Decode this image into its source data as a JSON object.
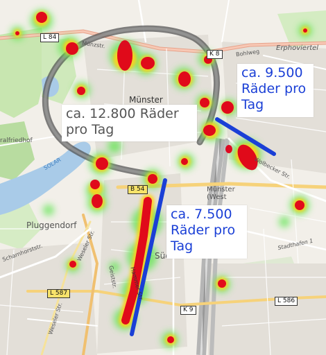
{
  "annotations": {
    "center_label": "ca. 12.800 Räder\npro Tag",
    "east_label": "ca. 9.500\nRäder pro\nTag",
    "south_label": "ca. 7.500\nRäder pro\nTag"
  },
  "annotation_colors": {
    "center_text": "#555555",
    "east_text": "#1a3fd6",
    "south_text": "#1a3fd6",
    "marker_line": "#1a3fd6"
  },
  "road_shields": {
    "l84": "L 84",
    "k8": "K 8",
    "b54": "B 54",
    "l587": "L 587",
    "k9": "K 9",
    "l586": "L 586"
  },
  "places": {
    "muenster": "Münster",
    "pluggendorf": "Pluggendorf",
    "erphoviertel": "Erphoviertel",
    "muenster_west": "Münster\n(West",
    "sued": "Süd"
  },
  "streets": {
    "bohlweg": "Bohlweg",
    "muenzstr": "Münzstr.",
    "weseler_str_1": "Weseler Str.",
    "weseler_str_2": "Weseler Str.",
    "scharnhorststr": "Scharnhorststr.",
    "geiststr": "Geiststr.",
    "hammer_str": "Hammer Str.",
    "wolbecker_str": "Wolbecker Str.",
    "stadthafen": "Stadthafen 1",
    "friedhof": "ralfriedhof",
    "aasee": "SOLAR"
  },
  "heatmap_colors": {
    "hot": "#e0001a",
    "warm": "#ffd21a",
    "cool": "#5fe650"
  }
}
